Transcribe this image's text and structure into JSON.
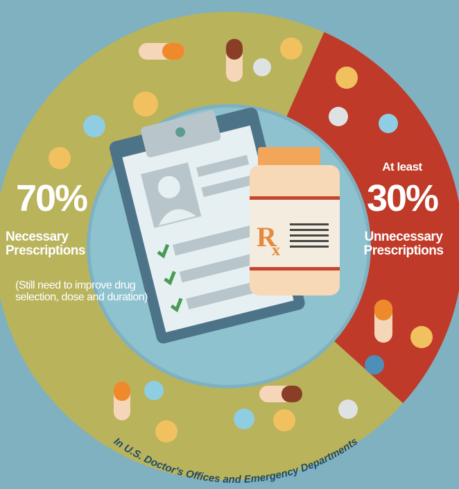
{
  "chart_data": {
    "type": "donut",
    "categories": [
      "Necessary Prescriptions",
      "Unnecessary Prescriptions"
    ],
    "values": [
      70,
      30
    ],
    "value_labels": [
      "70%",
      "30%"
    ],
    "colors": [
      "#b9b35c",
      "#bf3a28"
    ],
    "annotations": [
      "(Still need to improve drug selection, dose and duration)",
      "At least"
    ],
    "subtitle": "In U.S. Doctor's Offices and Emergency Departments"
  }
}
